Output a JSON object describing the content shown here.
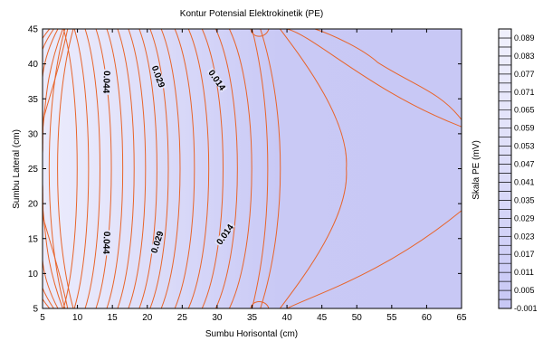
{
  "chart_data": {
    "type": "contour",
    "title": "Kontur Potensial Elektrokinetik (PE)",
    "xlabel": "Sumbu Horisontal (cm)",
    "ylabel": "Sumbu Lateral (cm)",
    "xlim": [
      5,
      65
    ],
    "ylim": [
      5,
      45
    ],
    "xticks": [
      "5",
      "10",
      "15",
      "20",
      "25",
      "30",
      "35",
      "40",
      "45",
      "50",
      "55",
      "60",
      "65"
    ],
    "yticks": [
      "5",
      "10",
      "15",
      "20",
      "25",
      "30",
      "35",
      "40",
      "45"
    ],
    "contour_labels": [
      {
        "text": "0.044",
        "x": 14.2,
        "y": 37.4,
        "angle": 92
      },
      {
        "text": "0.029",
        "x": 21.6,
        "y": 38.2,
        "angle": 70
      },
      {
        "text": "0.014",
        "x": 30.0,
        "y": 37.7,
        "angle": 55
      },
      {
        "text": "0.044",
        "x": 14.2,
        "y": 14.4,
        "angle": 92
      },
      {
        "text": "0.029",
        "x": 21.4,
        "y": 14.5,
        "angle": -72
      },
      {
        "text": "0.014",
        "x": 31.1,
        "y": 15.6,
        "angle": -55
      }
    ],
    "colorbar": {
      "label": "Skala PE (mV)",
      "min": -0.001,
      "max": 0.092,
      "step": 0.003,
      "tick_labels": [
        "0.089",
        "0.083",
        "0.077",
        "0.071",
        "0.065",
        "0.059",
        "0.053",
        "0.047",
        "0.041",
        "0.035",
        "0.029",
        "0.023",
        "0.017",
        "0.011",
        "0.005",
        "-0.001"
      ],
      "color_low": "#c8c8f5",
      "color_high": "#f0f0fc"
    },
    "contour_color": "#e8642a",
    "grid": false
  }
}
